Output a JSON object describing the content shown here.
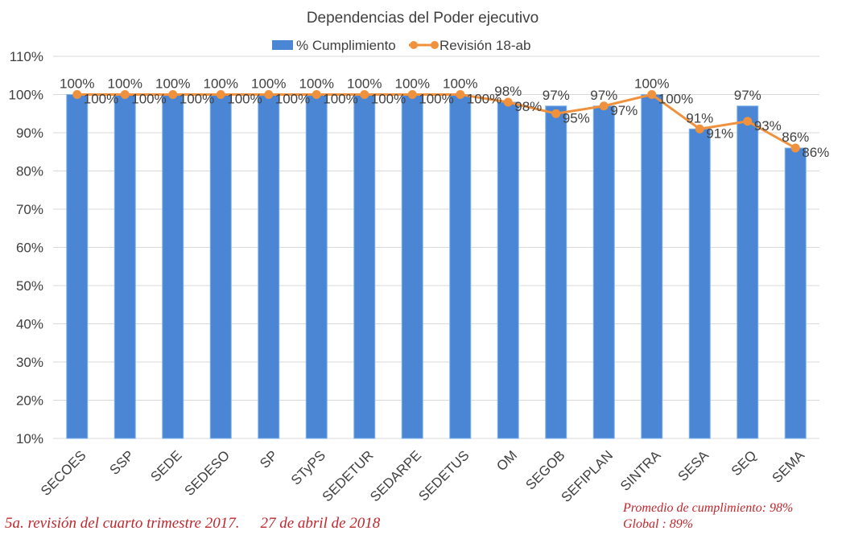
{
  "chart_data": {
    "type": "bar",
    "title": "Dependencias  del Poder ejecutivo",
    "categories": [
      "SECOES",
      "SSP",
      "SEDE",
      "SEDESO",
      "SP",
      "STyPS",
      "SEDETUR",
      "SEDARPE",
      "SEDETUS",
      "OM",
      "SEGOB",
      "SEFIPLAN",
      "SINTRA",
      "SESA",
      "SEQ",
      "SEMA"
    ],
    "series": [
      {
        "name": "% Cumplimiento",
        "kind": "bar",
        "color": "#4a86d4",
        "values": [
          100,
          100,
          100,
          100,
          100,
          100,
          100,
          100,
          100,
          98,
          97,
          97,
          100,
          91,
          97,
          86
        ],
        "labels": [
          "100%",
          "100%",
          "100%",
          "100%",
          "100%",
          "100%",
          "100%",
          "100%",
          "100%",
          "98%",
          "97%",
          "97%",
          "100%",
          "91%",
          "97%",
          "86%"
        ]
      },
      {
        "name": "Revisión  18-ab",
        "kind": "line",
        "color": "#f0913d",
        "values": [
          100,
          100,
          100,
          100,
          100,
          100,
          100,
          100,
          100,
          98,
          95,
          97,
          100,
          91,
          93,
          86
        ],
        "labels": [
          "100%",
          "100%",
          "100%",
          "100%",
          "100%",
          "100%",
          "100%",
          "100%",
          "100%",
          "98%",
          "95%",
          "97%",
          "100%",
          "91%",
          "93%",
          "86%"
        ]
      }
    ],
    "ylim": [
      10,
      110
    ],
    "yticks": [
      "10%",
      "20%",
      "30%",
      "40%",
      "50%",
      "60%",
      "70%",
      "80%",
      "90%",
      "100%",
      "110%"
    ],
    "ytick_values": [
      10,
      20,
      30,
      40,
      50,
      60,
      70,
      80,
      90,
      100,
      110
    ],
    "grid": true,
    "legend_position": "top"
  },
  "footer": {
    "note": "5a. revisión del cuarto trimestre 2017.",
    "date": "27 de abril de 2018",
    "average": "Promedio de cumplimiento: 98%",
    "global": "Global : 89%"
  }
}
